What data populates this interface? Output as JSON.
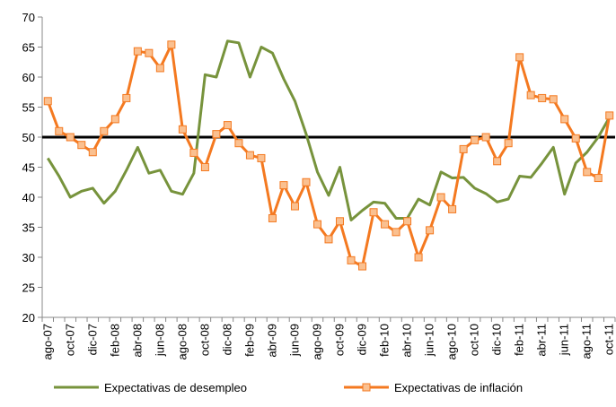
{
  "chart_data": {
    "type": "line",
    "categories": [
      "ago-07",
      null,
      "oct-07",
      null,
      "dic-07",
      null,
      "feb-08",
      null,
      "abr-08",
      null,
      "jun-08",
      null,
      "ago-08",
      null,
      "oct-08",
      null,
      "dic-08",
      null,
      "feb-09",
      null,
      "abr-09",
      null,
      "jun-09",
      null,
      "ago-09",
      null,
      "oct-09",
      null,
      "dic-09",
      null,
      "feb-10",
      null,
      "abr-10",
      null,
      "jun-10",
      null,
      "ago-10",
      null,
      "oct-10",
      null,
      "dic-10",
      null,
      "feb-11",
      null,
      "abr-11",
      null,
      "jun-11",
      null,
      "ago-11",
      null,
      "oct-11"
    ],
    "series": [
      {
        "name": "Expectativas de desempleo",
        "color": "#77933c",
        "marker": false,
        "values": [
          46.5,
          43.5,
          40,
          41,
          41.5,
          39,
          41,
          44.5,
          48.3,
          44,
          44.5,
          41,
          40.5,
          44,
          60.4,
          60,
          66,
          65.7,
          60,
          65,
          64,
          59.7,
          56,
          50.5,
          44.2,
          40.3,
          45,
          36.2,
          37.8,
          39.2,
          39,
          36.5,
          36.5,
          39.7,
          38.7,
          44.2,
          43.2,
          43.3,
          41.5,
          40.6,
          39.2,
          39.7,
          43.5,
          43.3,
          45.7,
          48.3,
          40.5,
          45.7,
          47.5,
          50,
          53.3
        ]
      },
      {
        "name": "Expectativas de inflación",
        "color": "#f47920",
        "marker": true,
        "values": [
          56,
          51,
          50,
          48.7,
          47.5,
          51,
          53,
          56.5,
          64.3,
          64,
          61.5,
          65.4,
          51.3,
          47.4,
          45,
          50.5,
          52,
          49,
          47,
          46.5,
          36.5,
          42,
          38.5,
          42.5,
          35.5,
          33,
          36,
          29.5,
          28.5,
          37.5,
          35.5,
          34.2,
          36,
          30,
          34.5,
          40,
          38,
          48,
          49.5,
          50,
          46,
          49,
          63.3,
          57,
          56.5,
          56.3,
          53,
          49.8,
          44.2,
          43.2,
          53.6
        ]
      }
    ],
    "hline": 50,
    "ylim": [
      20,
      70
    ],
    "yticks": [
      20,
      25,
      30,
      35,
      40,
      45,
      50,
      55,
      60,
      65,
      70
    ],
    "grid": false,
    "legend": "bottom"
  }
}
